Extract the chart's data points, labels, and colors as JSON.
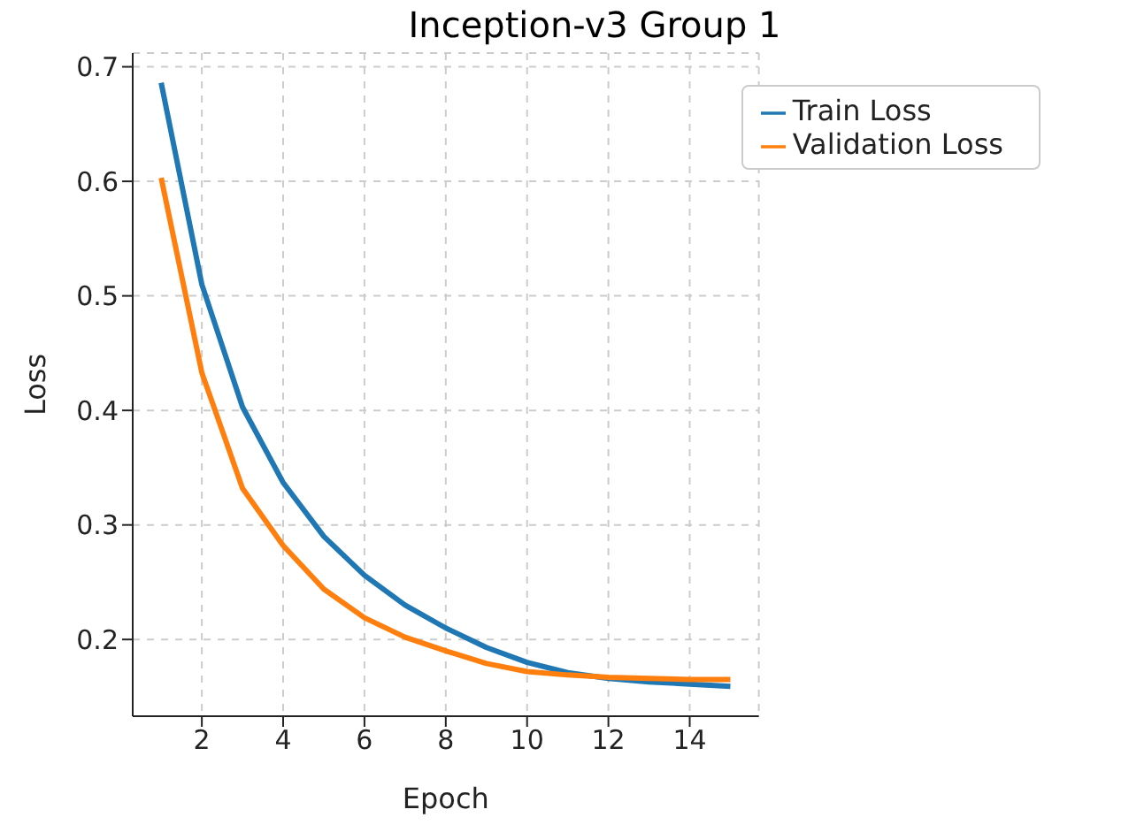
{
  "chart_data": {
    "type": "line",
    "title": "Inception-v3 Group 1",
    "xlabel": "Epoch",
    "ylabel": "Loss",
    "x": [
      1,
      2,
      3,
      4,
      5,
      6,
      7,
      8,
      9,
      10,
      11,
      12,
      13,
      14,
      15
    ],
    "series": [
      {
        "name": "Train Loss",
        "color": "#1f77b4",
        "values": [
          0.686,
          0.51,
          0.403,
          0.337,
          0.29,
          0.256,
          0.23,
          0.21,
          0.193,
          0.18,
          0.171,
          0.166,
          0.163,
          0.161,
          0.159
        ]
      },
      {
        "name": "Validation Loss",
        "color": "#ff7f0e",
        "values": [
          0.603,
          0.433,
          0.332,
          0.282,
          0.244,
          0.219,
          0.202,
          0.19,
          0.179,
          0.172,
          0.169,
          0.167,
          0.166,
          0.165,
          0.165
        ]
      }
    ],
    "xlim": [
      0.3,
      15.7
    ],
    "xticks": [
      2,
      4,
      6,
      8,
      10,
      12,
      14
    ],
    "ylim": [
      0.133,
      0.712
    ],
    "yticks": [
      0.2,
      0.3,
      0.4,
      0.5,
      0.6,
      0.7
    ],
    "grid": true,
    "legend": "top right",
    "marker": "none",
    "line_style": "solid"
  }
}
